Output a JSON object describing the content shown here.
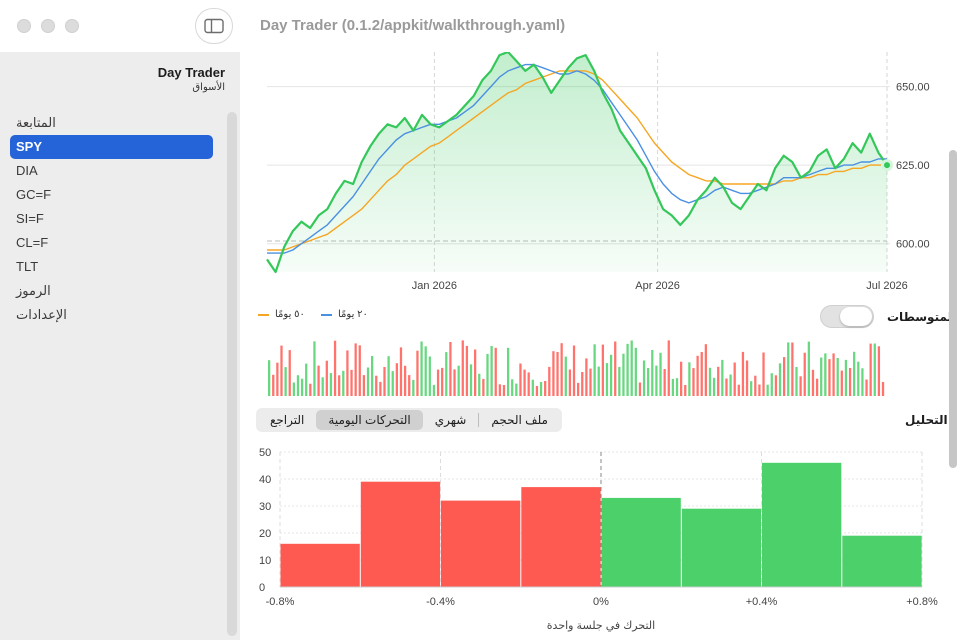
{
  "window": {
    "title": "Day Trader (0.1.2/appkit/walkthrough.yaml)"
  },
  "sidebar": {
    "title": "Day Trader",
    "subtitle": "الأسواق",
    "items": [
      {
        "label": "المتابعة",
        "active": false
      },
      {
        "label": "SPY",
        "active": true
      },
      {
        "label": "DIA",
        "active": false
      },
      {
        "label": "GC=F",
        "active": false
      },
      {
        "label": "SI=F",
        "active": false
      },
      {
        "label": "CL=F",
        "active": false
      },
      {
        "label": "TLT",
        "active": false
      },
      {
        "label": "الرموز",
        "active": false
      },
      {
        "label": "الإعدادات",
        "active": false
      }
    ]
  },
  "controls": {
    "moving_averages_label": "المتوسطات",
    "moving_averages_on": false,
    "legend_ma20": "٢٠ يومًا",
    "legend_ma50": "٥٠ يومًا",
    "analysis_label": "التحليل",
    "segments": [
      "ملف الحجم",
      "شهري",
      "التحركات اليومية",
      "التراجع"
    ],
    "selected_segment": "التحركات اليومية"
  },
  "colors": {
    "price": "#34c759",
    "ma20": "#4a90e2",
    "ma50": "#f5a623",
    "up": "#4cd06a",
    "down": "#ff5a52",
    "accent": "#2563d9"
  },
  "chart_data": [
    {
      "type": "line",
      "y_ticks": [
        "650.00",
        "625.00",
        "600.00"
      ],
      "x_ticks": [
        "Jan 2026",
        "Apr 2026",
        "Jul 2026"
      ],
      "ylim": [
        591,
        661
      ],
      "series": [
        {
          "role": "price",
          "values": [
            595,
            591,
            599,
            604,
            607,
            605,
            609,
            611,
            616,
            620,
            619,
            626,
            631,
            635,
            638,
            637,
            640,
            636,
            641,
            638,
            637,
            639,
            641,
            644,
            647,
            652,
            655,
            660,
            661,
            658,
            655,
            657,
            653,
            648,
            652,
            656,
            659,
            660,
            655,
            648,
            643,
            636,
            632,
            628,
            624,
            617,
            611,
            609,
            606,
            609,
            614,
            617,
            621,
            618,
            613,
            611,
            615,
            619,
            617,
            624,
            628,
            626,
            621,
            623,
            628,
            630,
            624,
            627,
            632,
            629,
            635,
            629,
            625
          ]
        },
        {
          "role": "ma20",
          "values": [
            597,
            597,
            597,
            598,
            600,
            602,
            604,
            606,
            609,
            612,
            615,
            619,
            623,
            627,
            630,
            633,
            635,
            636,
            637,
            638,
            638,
            639,
            640,
            642,
            644,
            647,
            650,
            653,
            655,
            656,
            657,
            657,
            656,
            655,
            654,
            654,
            655,
            654,
            652,
            649,
            645,
            641,
            637,
            633,
            628,
            623,
            619,
            616,
            614,
            613,
            614,
            615,
            617,
            618,
            617,
            616,
            616,
            617,
            618,
            619,
            621,
            621,
            621,
            622,
            623,
            624,
            624,
            625,
            625,
            626,
            626,
            627,
            627
          ]
        },
        {
          "role": "ma50",
          "values": [
            598,
            598,
            598,
            599,
            600,
            601,
            602,
            603,
            605,
            607,
            609,
            611,
            614,
            617,
            620,
            622,
            625,
            627,
            629,
            631,
            632,
            634,
            636,
            638,
            640,
            642,
            644,
            646,
            648,
            649,
            651,
            652,
            653,
            654,
            655,
            655,
            655,
            655,
            654,
            652,
            649,
            646,
            643,
            640,
            636,
            632,
            629,
            626,
            624,
            622,
            621,
            620,
            620,
            619,
            619,
            619,
            619,
            619,
            619,
            619,
            620,
            620,
            621,
            621,
            622,
            622,
            623,
            623,
            624,
            624,
            625,
            625,
            625
          ]
        }
      ]
    },
    {
      "type": "bar",
      "title": "volume",
      "up_color": "#4cd06a",
      "down_color": "#ff5a52"
    },
    {
      "type": "bar",
      "categories": [
        "-0.8%",
        "-0.6%",
        "-0.4%",
        "-0.2%",
        "0%",
        "+0.2%",
        "+0.4%",
        "+0.6%"
      ],
      "values": [
        16,
        39,
        32,
        37,
        33,
        29,
        46,
        19
      ],
      "directions": [
        "down",
        "down",
        "down",
        "down",
        "up",
        "up",
        "up",
        "up"
      ],
      "x_ticks": [
        "-0.8%",
        "-0.4%",
        "0%",
        "+0.4%",
        "+0.8%"
      ],
      "y_ticks": [
        "50",
        "40",
        "30",
        "20",
        "10",
        "0"
      ],
      "ylim": [
        0,
        50
      ],
      "xlabel": "التحرك في جلسة واحدة"
    }
  ]
}
